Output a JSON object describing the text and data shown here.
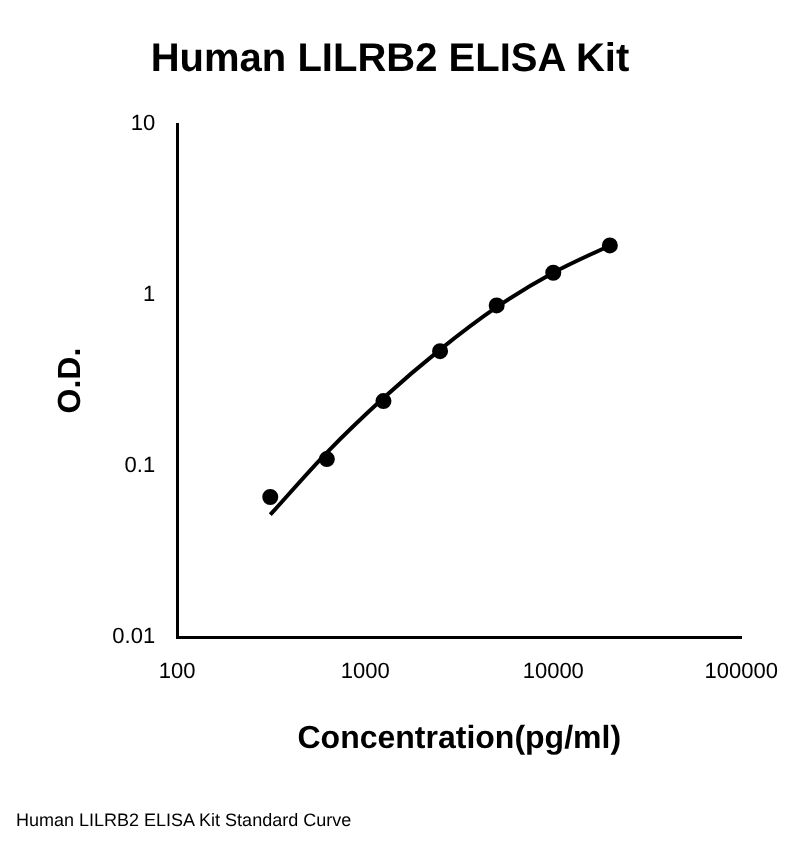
{
  "chart_data": {
    "type": "scatter",
    "title": "Human LILRB2 ELISA Kit",
    "xlabel": "Concentration(pg/ml)",
    "ylabel": "O.D.",
    "log": "xy",
    "xlim": [
      100,
      100000
    ],
    "xticks": [
      100,
      1000,
      10000,
      100000
    ],
    "ylim": [
      0.01,
      10
    ],
    "yticks": [
      0.01,
      0.1,
      1,
      10
    ],
    "grid": false,
    "legend": false,
    "marker": "circle",
    "annotations": [
      "Human LILRB2 ELISA Kit Standard Curve"
    ],
    "series": [
      {
        "type": "scatter",
        "color": "#000000",
        "x": [
          312.5,
          625,
          1250,
          2500,
          5000,
          10000,
          20000
        ],
        "values": [
          0.066,
          0.11,
          0.24,
          0.47,
          0.87,
          1.35,
          1.95
        ]
      },
      {
        "type": "line",
        "color": "#000000",
        "marker": "none",
        "x": [
          312.5,
          625,
          1250,
          2500,
          5000,
          10000,
          20000
        ],
        "values": [
          0.052,
          0.12,
          0.25,
          0.48,
          0.85,
          1.35,
          1.95
        ]
      }
    ]
  }
}
